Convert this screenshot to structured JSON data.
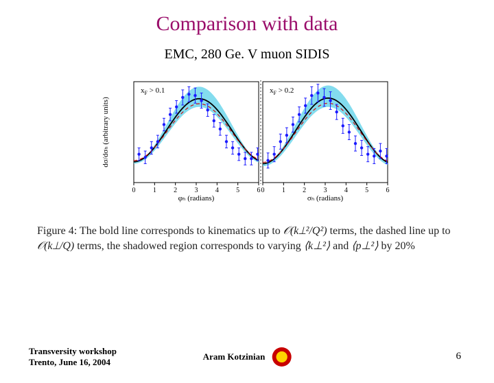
{
  "title": "Comparison with data",
  "subtitle": "EMC, 280 Ge. V muon SIDIS",
  "chart": {
    "type": "scatter-with-band",
    "panels": [
      {
        "label": "x_F > 0.1",
        "ylabel": "dσ/dσₕ (arbitrary units)",
        "xlabel": "φₕ (radians)",
        "xlim": [
          0,
          6
        ],
        "xtick_step": 1,
        "ylim": [
          -0.2,
          1.4
        ],
        "data_points": {
          "x": [
            0.25,
            0.55,
            0.85,
            1.15,
            1.45,
            1.75,
            2.05,
            2.35,
            2.65,
            2.95,
            3.25,
            3.55,
            3.85,
            4.15,
            4.45,
            4.75,
            5.05,
            5.35,
            5.65,
            5.95
          ],
          "y": [
            0.25,
            0.2,
            0.35,
            0.45,
            0.72,
            0.88,
            1.0,
            1.15,
            1.2,
            1.18,
            1.1,
            0.95,
            0.78,
            0.65,
            0.45,
            0.35,
            0.25,
            0.18,
            0.18,
            0.25
          ],
          "yerr": [
            0.1,
            0.1,
            0.1,
            0.1,
            0.1,
            0.1,
            0.1,
            0.12,
            0.12,
            0.12,
            0.12,
            0.1,
            0.1,
            0.1,
            0.1,
            0.1,
            0.1,
            0.1,
            0.1,
            0.1
          ]
        },
        "band": {
          "type": "cosine",
          "amp_outer": 0.6,
          "offset_outer_hi": 0.72,
          "offset_outer_lo": 0.55,
          "amp_inner": 0.5,
          "offset_inner": 0.63,
          "period": 6.283
        },
        "marker_color": "#1a1aff",
        "band_color": "#5ad0e8",
        "bold_line_color": "#000000",
        "dashed_line_color": "#cc1010",
        "bg_color": "#ffffff",
        "frame_color": "#000000"
      },
      {
        "label": "x_F > 0.2",
        "xlabel": "σₕ (radians)",
        "xlim": [
          0,
          6
        ],
        "xtick_step": 1,
        "ylim": [
          -0.2,
          1.4
        ],
        "data_points": {
          "x": [
            0.25,
            0.55,
            0.85,
            1.15,
            1.45,
            1.75,
            2.05,
            2.35,
            2.65,
            2.95,
            3.25,
            3.55,
            3.85,
            4.15,
            4.45,
            4.75,
            5.05,
            5.35,
            5.65,
            5.95
          ],
          "y": [
            0.15,
            0.25,
            0.45,
            0.55,
            0.72,
            0.88,
            1.02,
            1.18,
            1.22,
            1.15,
            1.1,
            0.92,
            0.7,
            0.6,
            0.42,
            0.35,
            0.25,
            0.22,
            0.3,
            0.22
          ],
          "yerr": [
            0.12,
            0.12,
            0.12,
            0.12,
            0.12,
            0.12,
            0.12,
            0.14,
            0.14,
            0.14,
            0.14,
            0.12,
            0.12,
            0.12,
            0.12,
            0.12,
            0.12,
            0.12,
            0.12,
            0.12
          ]
        },
        "band": {
          "type": "cosine",
          "amp_outer": 0.62,
          "offset_outer_hi": 0.72,
          "offset_outer_lo": 0.53,
          "amp_inner": 0.52,
          "offset_inner": 0.62,
          "period": 6.283
        },
        "marker_color": "#1a1aff",
        "band_color": "#5ad0e8",
        "bold_line_color": "#000000",
        "dashed_line_color": "#cc1010",
        "bg_color": "#ffffff",
        "frame_color": "#000000"
      }
    ],
    "label_fontsize": 11,
    "tick_fontsize": 10
  },
  "caption": {
    "prefix": "Figure 4: The bold line corresponds to kinematics up to ",
    "term1": "𝒪(k⊥²/Q²)",
    "mid1": " terms, the dashed line up to ",
    "term2": "𝒪(k⊥/Q)",
    "mid2": " terms, the shadowed region corresponds to varying ",
    "term3": "⟨k⊥²⟩",
    "mid3": " and ",
    "term4": "⟨p⊥²⟩",
    "suffix": " by 20%"
  },
  "footer": {
    "left_line1": "Transversity workshop",
    "left_line2": "Trento, June 16, 2004",
    "center": "Aram Kotzinian",
    "page": "6"
  }
}
